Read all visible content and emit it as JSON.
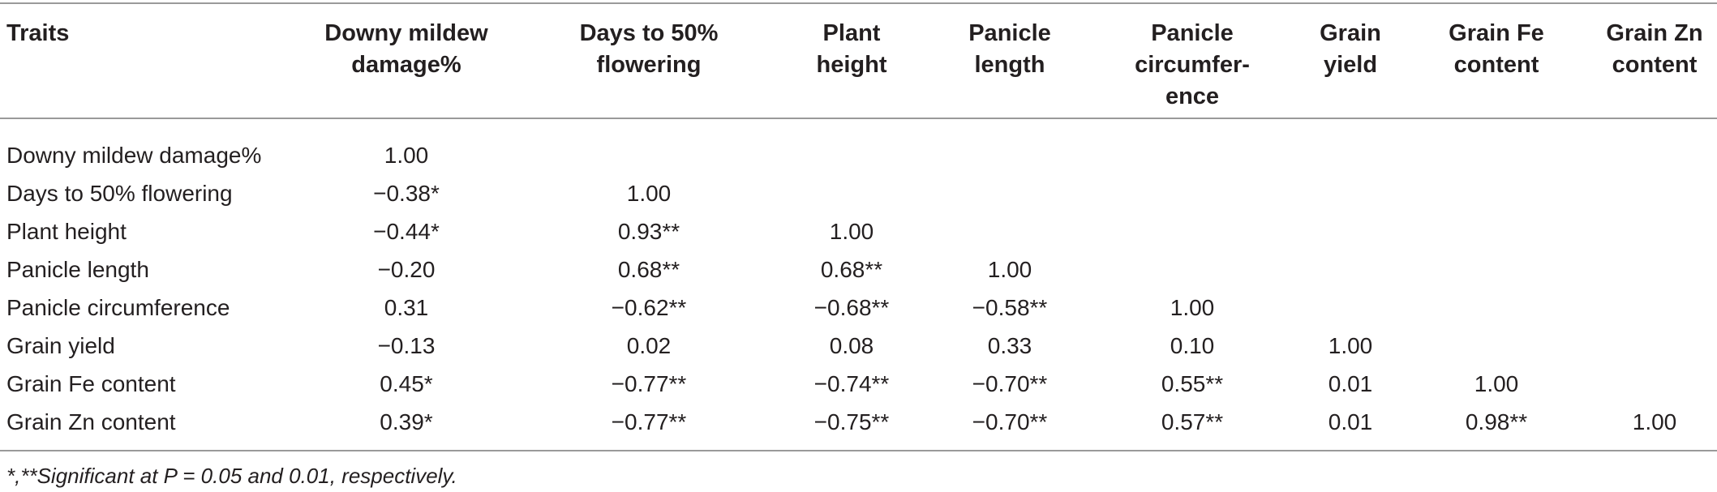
{
  "table": {
    "headers": [
      "Traits",
      "Downy mildew\ndamage%",
      "Days to 50%\nflowering",
      "Plant\nheight",
      "Panicle\nlength",
      "Panicle\ncircumfer-\nence",
      "Grain\nyield",
      "Grain Fe\ncontent",
      "Grain Zn\ncontent"
    ],
    "rows": [
      {
        "label": "Downy mildew damage%",
        "values": [
          "1.00",
          "",
          "",
          "",
          "",
          "",
          "",
          ""
        ]
      },
      {
        "label": "Days to 50% flowering",
        "values": [
          "−0.38*",
          "1.00",
          "",
          "",
          "",
          "",
          "",
          ""
        ]
      },
      {
        "label": "Plant height",
        "values": [
          "−0.44*",
          "0.93**",
          "1.00",
          "",
          "",
          "",
          "",
          ""
        ]
      },
      {
        "label": "Panicle length",
        "values": [
          "−0.20",
          "0.68**",
          "0.68**",
          "1.00",
          "",
          "",
          "",
          ""
        ]
      },
      {
        "label": "Panicle circumference",
        "values": [
          "0.31",
          "−0.62**",
          "−0.68**",
          "−0.58**",
          "1.00",
          "",
          "",
          ""
        ]
      },
      {
        "label": "Grain yield",
        "values": [
          "−0.13",
          "0.02",
          "0.08",
          "0.33",
          "0.10",
          "1.00",
          "",
          ""
        ]
      },
      {
        "label": "Grain Fe content",
        "values": [
          "0.45*",
          "−0.77**",
          "−0.74**",
          "−0.70**",
          "0.55**",
          "0.01",
          "1.00",
          ""
        ]
      },
      {
        "label": "Grain Zn content",
        "values": [
          "0.39*",
          "−0.77**",
          "−0.75**",
          "−0.70**",
          "0.57**",
          "0.01",
          "0.98**",
          "1.00"
        ]
      }
    ],
    "footnote": "*,**Significant at P = 0.05 and 0.01, respectively."
  }
}
